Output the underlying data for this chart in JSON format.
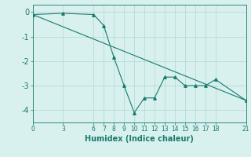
{
  "xlabel": "Humidex (Indice chaleur)",
  "line1_x": [
    0,
    3,
    6,
    7,
    8,
    9,
    10,
    11,
    12,
    13,
    14,
    15,
    16,
    17,
    18,
    21
  ],
  "line1_y": [
    -0.1,
    -0.05,
    -0.1,
    -0.55,
    -1.85,
    -3.0,
    -4.1,
    -3.5,
    -3.5,
    -2.65,
    -2.65,
    -3.0,
    -3.0,
    -3.0,
    -2.75,
    -3.6
  ],
  "line2_x": [
    0,
    21
  ],
  "line2_y": [
    -0.1,
    -3.6
  ],
  "color": "#1a7a6e",
  "bg_color": "#d8f0ee",
  "grid_color": "#b0d8d2",
  "xlim": [
    0,
    21
  ],
  "ylim": [
    -4.5,
    0.3
  ],
  "yticks": [
    0,
    -1,
    -2,
    -3,
    -4
  ],
  "xticks": [
    0,
    3,
    6,
    7,
    8,
    9,
    10,
    11,
    12,
    13,
    14,
    15,
    16,
    17,
    18,
    21
  ]
}
